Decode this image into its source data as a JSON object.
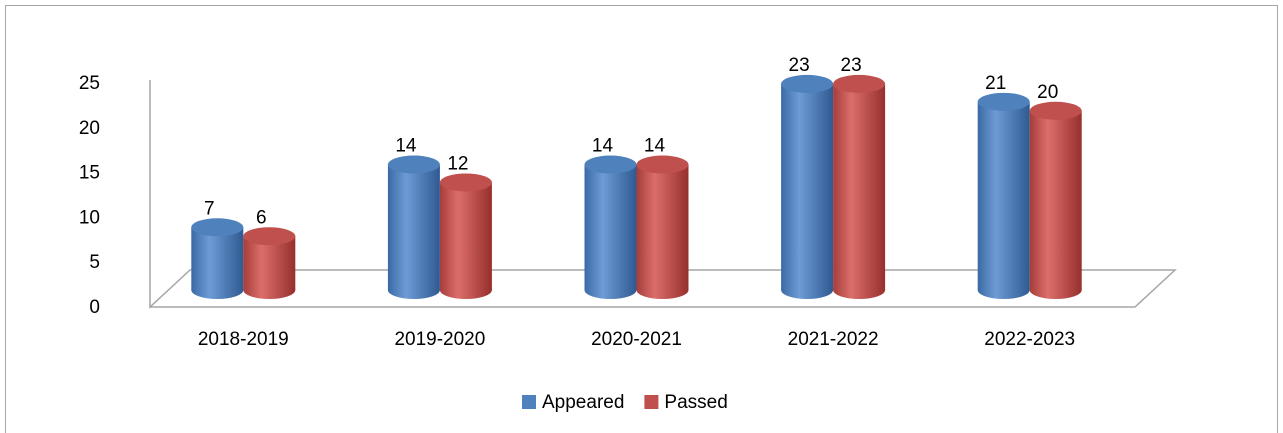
{
  "chart_data": {
    "type": "bar3d",
    "categories": [
      "2018-2019",
      "2019-2020",
      "2020-2021",
      "2021-2022",
      "2022-2023"
    ],
    "series": [
      {
        "name": "Appeared",
        "color": "#4f81bd",
        "values": [
          7,
          14,
          14,
          23,
          21
        ]
      },
      {
        "name": "Passed",
        "color": "#c0504d",
        "values": [
          6,
          12,
          14,
          23,
          20
        ]
      }
    ],
    "ylim": [
      0,
      25
    ],
    "yticks": [
      0,
      5,
      10,
      15,
      20,
      25
    ],
    "legend": "bottom"
  }
}
